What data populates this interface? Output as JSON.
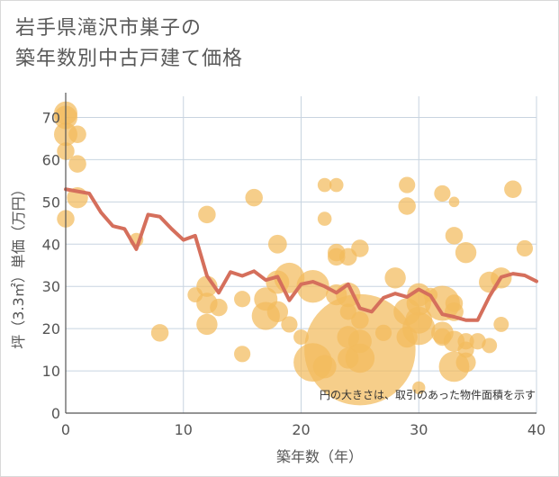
{
  "title_line1": "岩手県滝沢市巣子の",
  "title_line2": "築年数別中古戸建て価格",
  "note": "円の大きさは、取引のあった物件面積を示す",
  "colors": {
    "bubble": "#f2bb5d",
    "line": "#d56f5c",
    "grid": "#c8d4e0",
    "axis": "#555555"
  },
  "chart_data": {
    "type": "scatter",
    "xlabel": "築年数（年）",
    "ylabel": "坪（3.3㎡）単価（万円）",
    "xlim": [
      0,
      40
    ],
    "ylim": [
      0,
      75
    ],
    "xticks": [
      0,
      10,
      20,
      30,
      40
    ],
    "yticks": [
      0,
      10,
      20,
      30,
      40,
      50,
      60,
      70
    ],
    "bubbles": [
      {
        "x": 0,
        "y": 71,
        "s": 2
      },
      {
        "x": 0,
        "y": 70,
        "s": 2
      },
      {
        "x": 0,
        "y": 66,
        "s": 2
      },
      {
        "x": 0,
        "y": 62,
        "s": 1.5
      },
      {
        "x": 0,
        "y": 46,
        "s": 1.5
      },
      {
        "x": 1,
        "y": 66,
        "s": 1.5
      },
      {
        "x": 1,
        "y": 59,
        "s": 1.5
      },
      {
        "x": 1,
        "y": 51,
        "s": 1.8
      },
      {
        "x": 6,
        "y": 41,
        "s": 1.2
      },
      {
        "x": 8,
        "y": 19,
        "s": 1.5
      },
      {
        "x": 11,
        "y": 28,
        "s": 1.3
      },
      {
        "x": 12,
        "y": 47,
        "s": 1.5
      },
      {
        "x": 12,
        "y": 30,
        "s": 1.8
      },
      {
        "x": 12,
        "y": 26,
        "s": 1.8
      },
      {
        "x": 12,
        "y": 21,
        "s": 1.8
      },
      {
        "x": 13,
        "y": 25,
        "s": 1.5
      },
      {
        "x": 15,
        "y": 27,
        "s": 1.4
      },
      {
        "x": 15,
        "y": 14,
        "s": 1.4
      },
      {
        "x": 16,
        "y": 51,
        "s": 1.5
      },
      {
        "x": 17,
        "y": 27,
        "s": 2
      },
      {
        "x": 17,
        "y": 23,
        "s": 2.4
      },
      {
        "x": 18,
        "y": 40,
        "s": 1.6
      },
      {
        "x": 18,
        "y": 31,
        "s": 2
      },
      {
        "x": 18,
        "y": 24,
        "s": 1.8
      },
      {
        "x": 19,
        "y": 32,
        "s": 2.6
      },
      {
        "x": 19,
        "y": 21,
        "s": 1.4
      },
      {
        "x": 20,
        "y": 18,
        "s": 1.3
      },
      {
        "x": 21,
        "y": 30,
        "s": 2.8
      },
      {
        "x": 21,
        "y": 12,
        "s": 3.3
      },
      {
        "x": 22,
        "y": 11,
        "s": 2
      },
      {
        "x": 22,
        "y": 54,
        "s": 1.2
      },
      {
        "x": 22,
        "y": 46,
        "s": 1.2
      },
      {
        "x": 23,
        "y": 54,
        "s": 1.2
      },
      {
        "x": 23,
        "y": 38,
        "s": 1.5
      },
      {
        "x": 23,
        "y": 37,
        "s": 1.5
      },
      {
        "x": 23,
        "y": 28,
        "s": 1.8
      },
      {
        "x": 24,
        "y": 37,
        "s": 1.5
      },
      {
        "x": 24,
        "y": 28,
        "s": 2.1
      },
      {
        "x": 24,
        "y": 24,
        "s": 1.4
      },
      {
        "x": 24,
        "y": 18,
        "s": 1.9
      },
      {
        "x": 24,
        "y": 13,
        "s": 1.8
      },
      {
        "x": 25,
        "y": 15,
        "s": 9.5
      },
      {
        "x": 25,
        "y": 39,
        "s": 1.5
      },
      {
        "x": 25,
        "y": 22,
        "s": 1.5
      },
      {
        "x": 25,
        "y": 17,
        "s": 2
      },
      {
        "x": 25,
        "y": 13,
        "s": 2.5
      },
      {
        "x": 27,
        "y": 19,
        "s": 1.4
      },
      {
        "x": 28,
        "y": 32,
        "s": 1.8
      },
      {
        "x": 29,
        "y": 54,
        "s": 1.4
      },
      {
        "x": 29,
        "y": 49,
        "s": 1.5
      },
      {
        "x": 29,
        "y": 24,
        "s": 2.3
      },
      {
        "x": 29,
        "y": 18,
        "s": 1.8
      },
      {
        "x": 30,
        "y": 28,
        "s": 2
      },
      {
        "x": 30,
        "y": 26,
        "s": 2.1
      },
      {
        "x": 30,
        "y": 22,
        "s": 2.3
      },
      {
        "x": 30,
        "y": 20,
        "s": 2.8
      },
      {
        "x": 30,
        "y": 6,
        "s": 1.1
      },
      {
        "x": 31,
        "y": 28,
        "s": 1.2
      },
      {
        "x": 32,
        "y": 52,
        "s": 1.4
      },
      {
        "x": 32,
        "y": 26,
        "s": 3
      },
      {
        "x": 32,
        "y": 19,
        "s": 1.9
      },
      {
        "x": 32,
        "y": 18,
        "s": 1.5
      },
      {
        "x": 33,
        "y": 50,
        "s": 0.9
      },
      {
        "x": 33,
        "y": 42,
        "s": 1.5
      },
      {
        "x": 33,
        "y": 26,
        "s": 1.5
      },
      {
        "x": 33,
        "y": 24,
        "s": 1.6
      },
      {
        "x": 33,
        "y": 17,
        "s": 1.8
      },
      {
        "x": 33,
        "y": 11,
        "s": 2.6
      },
      {
        "x": 34,
        "y": 38,
        "s": 1.8
      },
      {
        "x": 34,
        "y": 17,
        "s": 1.4
      },
      {
        "x": 34,
        "y": 15,
        "s": 1.4
      },
      {
        "x": 34,
        "y": 12,
        "s": 1.7
      },
      {
        "x": 35,
        "y": 17,
        "s": 1.4
      },
      {
        "x": 36,
        "y": 31,
        "s": 1.8
      },
      {
        "x": 36,
        "y": 16,
        "s": 1.3
      },
      {
        "x": 37,
        "y": 32,
        "s": 1.8
      },
      {
        "x": 37,
        "y": 21,
        "s": 1.3
      },
      {
        "x": 38,
        "y": 53,
        "s": 1.5
      },
      {
        "x": 39,
        "y": 39,
        "s": 1.4
      }
    ],
    "line": {
      "x": [
        0,
        1,
        2,
        3,
        4,
        5,
        6,
        7,
        8,
        9,
        10,
        11,
        12,
        13,
        14,
        15,
        16,
        17,
        18,
        19,
        20,
        21,
        22,
        23,
        24,
        25,
        26,
        27,
        28,
        29,
        30,
        31,
        32,
        33,
        34,
        35,
        36,
        37,
        38,
        39,
        40
      ],
      "y": [
        53,
        52.5,
        52,
        47.5,
        44.3,
        43.6,
        38.8,
        47,
        46.5,
        43.6,
        41,
        42,
        32.5,
        28.5,
        33.4,
        32.5,
        33.6,
        31.5,
        32.3,
        26.7,
        30.5,
        31.1,
        30,
        28.5,
        30.5,
        24.8,
        24,
        27.3,
        28.3,
        27.5,
        29.3,
        27.8,
        23.4,
        22.8,
        22,
        22,
        27.6,
        32.2,
        33,
        32.6,
        31.2
      ]
    }
  }
}
